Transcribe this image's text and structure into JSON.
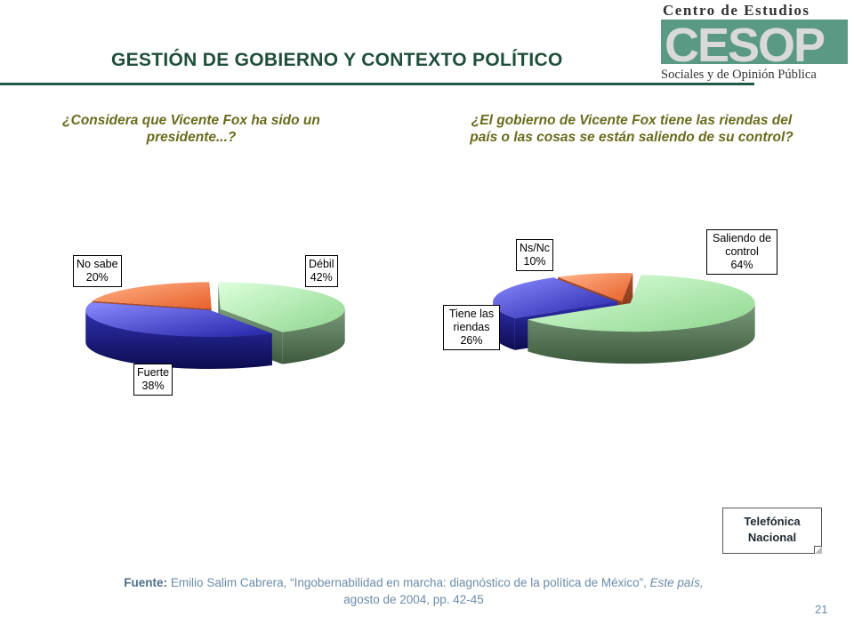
{
  "slide": {
    "title": "GESTIÓN DE GOBIERNO Y CONTEXTO POLÍTICO",
    "page_number": "21",
    "logo": {
      "line1": "Centro de Estudios",
      "acronym": "CESOP",
      "line2": "Sociales y de Opinión Pública"
    },
    "note": {
      "line1": "Telefónica",
      "line2": "Nacional"
    },
    "source": {
      "label": "Fuente:",
      "author": "Emilio Salim Cabrera,",
      "work": "“Ingobernabilidad en marcha: diagnóstico de la política de México”,",
      "publication": "Este país,",
      "date": "agosto de 2004, pp. 42-45"
    },
    "colors": {
      "title": "#1f4f3a",
      "question": "#6b6b1e",
      "source": "#6c8ba8",
      "green": "#b9efb9",
      "blue": "#4a4ad8",
      "orange": "#f08a50"
    }
  },
  "chart_data": [
    {
      "type": "pie",
      "title": "¿Considera que Vicente Fox ha sido un presidente...?",
      "slices": [
        {
          "label": "Débil",
          "value": 42,
          "display": "42%",
          "color": "green"
        },
        {
          "label": "Fuerte",
          "value": 38,
          "display": "38%",
          "color": "blue"
        },
        {
          "label": "No sabe",
          "value": 20,
          "display": "20%",
          "color": "orange"
        }
      ]
    },
    {
      "type": "pie",
      "title": "¿El gobierno de Vicente Fox tiene las riendas del país o las cosas se están saliendo de su control?",
      "slices": [
        {
          "label": "Saliendo de control",
          "value": 64,
          "display": "64%",
          "color": "green"
        },
        {
          "label": "Tiene las riendas",
          "value": 26,
          "display": "26%",
          "color": "blue"
        },
        {
          "label": "Ns/Nc",
          "value": 10,
          "display": "10%",
          "color": "orange"
        }
      ]
    }
  ]
}
